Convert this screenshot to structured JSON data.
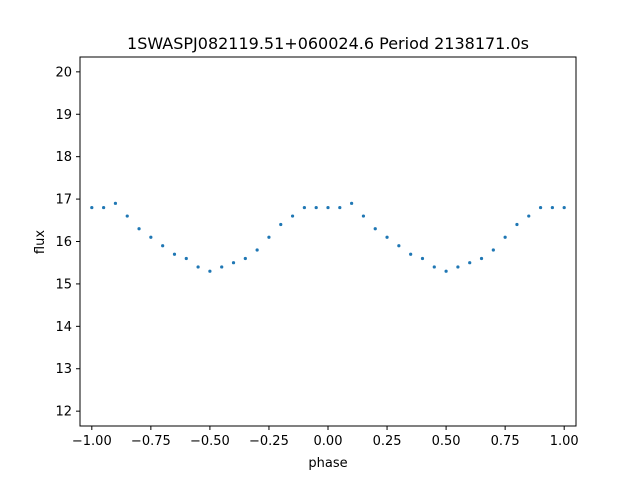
{
  "chart_data": {
    "type": "scatter",
    "title": "1SWASPJ082119.51+060024.6 Period 2138171.0s",
    "xlabel": "phase",
    "ylabel": "flux",
    "xlim": [
      -1.05,
      1.05
    ],
    "ylim": [
      11.65,
      20.35
    ],
    "xticks": [
      "−1.00",
      "−0.75",
      "−0.50",
      "−0.25",
      "0.00",
      "0.25",
      "0.50",
      "0.75",
      "1.00"
    ],
    "xtick_values": [
      -1.0,
      -0.75,
      -0.5,
      -0.25,
      0.0,
      0.25,
      0.5,
      0.75,
      1.0
    ],
    "yticks": [
      "12",
      "13",
      "14",
      "15",
      "16",
      "17",
      "18",
      "19",
      "20"
    ],
    "ytick_values": [
      12,
      13,
      14,
      15,
      16,
      17,
      18,
      19,
      20
    ],
    "grid": false,
    "marker_color": "#1f77b4",
    "series": [
      {
        "x": [
          -1.0,
          -0.95,
          -0.9,
          -0.85,
          -0.8,
          -0.75,
          -0.7,
          -0.65,
          -0.6,
          -0.55,
          -0.5,
          -0.45,
          -0.4,
          -0.35,
          -0.3,
          -0.25,
          -0.2,
          -0.15,
          -0.1,
          -0.05,
          0.0,
          0.05,
          0.1,
          0.15,
          0.2,
          0.25,
          0.3,
          0.35,
          0.4,
          0.45,
          0.5,
          0.55,
          0.6,
          0.65,
          0.7,
          0.75,
          0.8,
          0.85,
          0.9,
          0.95,
          1.0
        ],
        "y": [
          16.8,
          16.8,
          16.9,
          16.6,
          16.3,
          16.1,
          15.9,
          15.7,
          15.6,
          15.4,
          15.3,
          15.4,
          15.5,
          15.6,
          15.8,
          16.1,
          16.4,
          16.6,
          16.8,
          16.8,
          16.8,
          16.8,
          16.9,
          16.6,
          16.3,
          16.1,
          15.9,
          15.7,
          15.6,
          15.4,
          15.3,
          15.4,
          15.5,
          15.6,
          15.8,
          16.1,
          16.4,
          16.6,
          16.8,
          16.8,
          16.8
        ]
      }
    ]
  }
}
